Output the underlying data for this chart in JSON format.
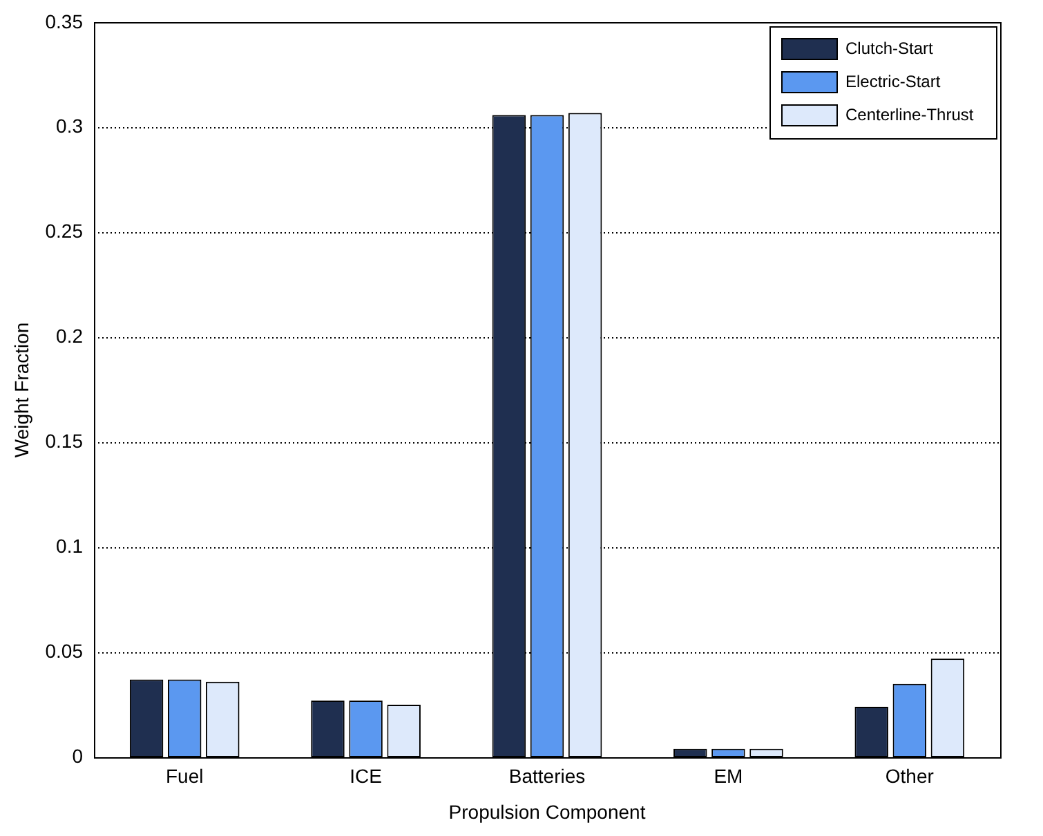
{
  "chart_data": {
    "type": "bar",
    "xlabel": "Propulsion Component",
    "ylabel": "Weight Fraction",
    "categories": [
      "Fuel",
      "ICE",
      "Batteries",
      "EM",
      "Other"
    ],
    "series": [
      {
        "name": "Clutch-Start",
        "color": "#1f2f50",
        "values": [
          0.037,
          0.027,
          0.306,
          0.004,
          0.024
        ]
      },
      {
        "name": "Electric-Start",
        "color": "#5b98f0",
        "values": [
          0.037,
          0.027,
          0.306,
          0.004,
          0.035
        ]
      },
      {
        "name": "Centerline-Thrust",
        "color": "#dde9fb",
        "values": [
          0.036,
          0.025,
          0.307,
          0.004,
          0.047
        ]
      }
    ],
    "ylim": [
      0,
      0.35
    ],
    "yticks": [
      0,
      0.05,
      0.1,
      0.15,
      0.2,
      0.25,
      0.3,
      0.35
    ],
    "grid": "y",
    "legend": "top right"
  }
}
